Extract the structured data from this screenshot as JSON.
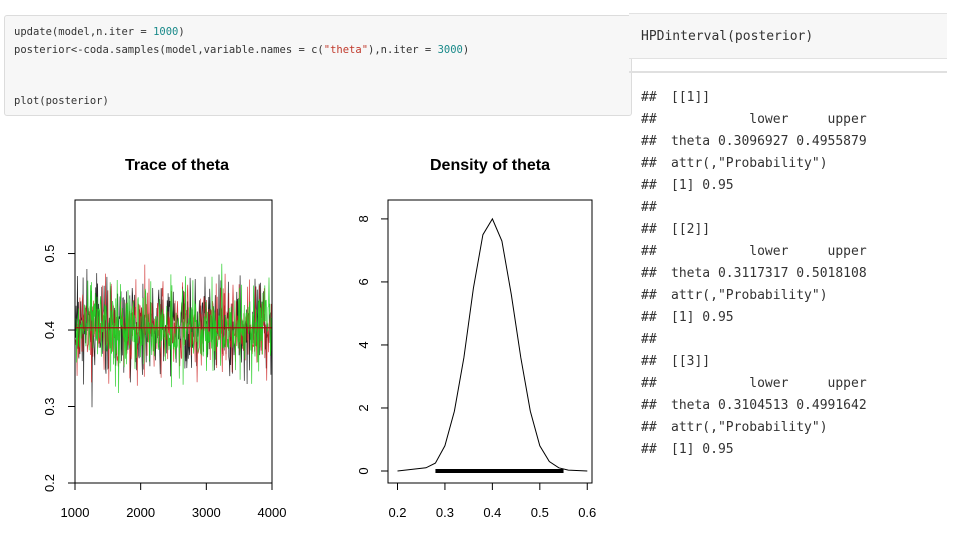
{
  "code_cell": {
    "line1_fn": "update(model,n.iter = ",
    "line1_num": "1000",
    "line1_end": ")",
    "line2_fn": "posterior<-coda.samples(model,variable.names = c(",
    "line2_str": "\"theta\"",
    "line2_mid": "),n.iter = ",
    "line2_num": "3000",
    "line2_end": ")",
    "line3": "plot(posterior)"
  },
  "right_cell": {
    "code": "HPDinterval(posterior)"
  },
  "output": {
    "hash": "##",
    "lines": [
      "[[1]]",
      "          lower     upper",
      "theta 0.3096927 0.4955879",
      "attr(,\"Probability\")",
      "[1] 0.95",
      "",
      "[[2]]",
      "          lower     upper",
      "theta 0.3117317 0.5018108",
      "attr(,\"Probability\")",
      "[1] 0.95",
      "",
      "[[3]]",
      "          lower     upper",
      "theta 0.3104513 0.4991642",
      "attr(,\"Probability\")",
      "[1] 0.95"
    ]
  },
  "chart_data": [
    {
      "type": "line",
      "title": "Trace of theta",
      "xlim": [
        1000,
        4000
      ],
      "ylim": [
        0.2,
        0.57
      ],
      "xticks": [
        "1000",
        "2000",
        "3000",
        "4000"
      ],
      "yticks": [
        "0.2",
        "0.3",
        "0.4",
        "0.5"
      ],
      "xtick_values": [
        1000,
        2000,
        3000,
        4000
      ],
      "ytick_values": [
        0.2,
        0.3,
        0.4,
        0.5
      ],
      "series": [
        {
          "color": "#000000",
          "mean": 0.403
        },
        {
          "color": "#cc2222",
          "mean": 0.403
        },
        {
          "color": "#22cc22",
          "mean": 0.403
        }
      ],
      "mean_line": 0.403
    },
    {
      "type": "line",
      "title": "Density of theta",
      "xlim": [
        0.18,
        0.61
      ],
      "ylim": [
        0,
        8.6
      ],
      "xticks": [
        "0.2",
        "0.3",
        "0.4",
        "0.5",
        "0.6"
      ],
      "yticks": [
        "0",
        "2",
        "4",
        "6",
        "8"
      ],
      "xtick_values": [
        0.2,
        0.3,
        0.4,
        0.5,
        0.6
      ],
      "ytick_values": [
        0,
        2,
        4,
        6,
        8
      ],
      "x": [
        0.2,
        0.26,
        0.28,
        0.3,
        0.32,
        0.34,
        0.36,
        0.38,
        0.4,
        0.42,
        0.44,
        0.46,
        0.48,
        0.5,
        0.52,
        0.54,
        0.56,
        0.6
      ],
      "y": [
        0,
        0.1,
        0.25,
        0.8,
        1.9,
        3.6,
        5.8,
        7.5,
        8.0,
        7.3,
        5.6,
        3.6,
        1.9,
        0.8,
        0.3,
        0.1,
        0.03,
        0
      ],
      "rug_range": [
        0.28,
        0.55
      ]
    }
  ]
}
